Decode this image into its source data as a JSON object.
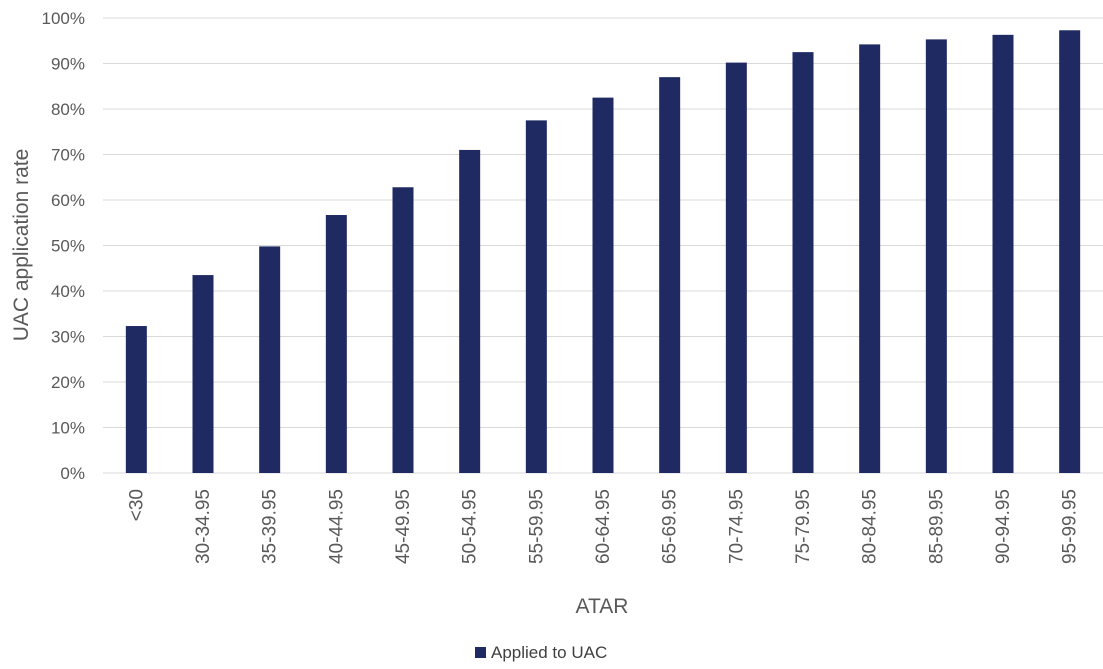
{
  "chart_data": {
    "type": "bar",
    "categories": [
      "<30",
      "30-34.95",
      "35-39.95",
      "40-44.95",
      "45-49.95",
      "50-54.95",
      "55-59.95",
      "60-64.95",
      "65-69.95",
      "70-74.95",
      "75-79.95",
      "80-84.95",
      "85-89.95",
      "90-94.95",
      "95-99.95"
    ],
    "series": [
      {
        "name": "Applied to UAC",
        "values": [
          32.3,
          43.5,
          49.8,
          56.7,
          62.8,
          71.0,
          77.5,
          82.5,
          87.0,
          90.2,
          92.5,
          94.2,
          95.3,
          96.3,
          97.3
        ],
        "color": "#1f2a63"
      }
    ],
    "title": "",
    "xlabel": "ATAR",
    "ylabel": "UAC application rate",
    "ylim": [
      0,
      100
    ],
    "yticks": [
      "0%",
      "10%",
      "20%",
      "30%",
      "40%",
      "50%",
      "60%",
      "70%",
      "80%",
      "90%",
      "100%"
    ],
    "grid": true,
    "legend_position": "bottom"
  }
}
